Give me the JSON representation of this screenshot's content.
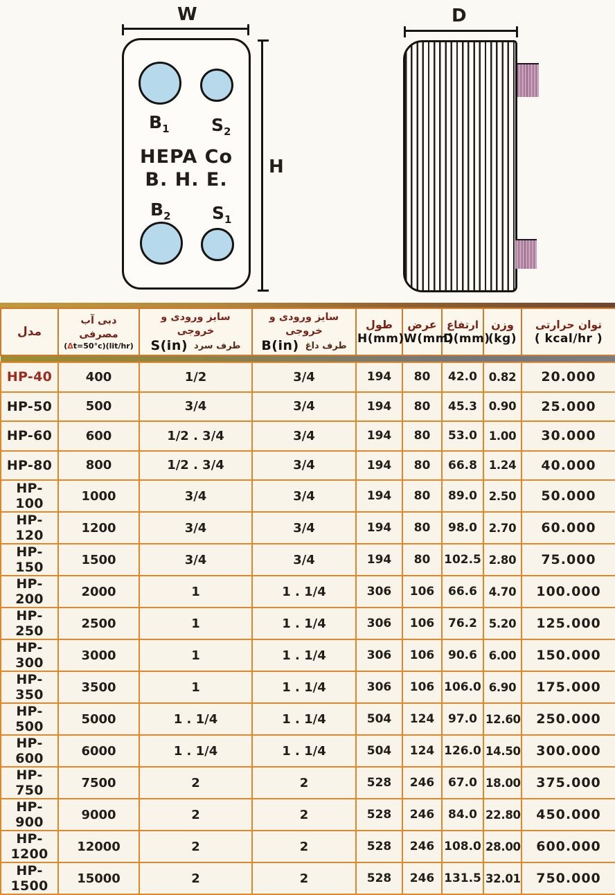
{
  "colors": {
    "grid_orange": "#e2862a",
    "header_maroon": "#7a2418",
    "model_red": "#9c2b1e",
    "port_blue": "#b6d9eb",
    "stub_pink": "#c8a0ba"
  },
  "front_view": {
    "width_label": "W",
    "height_label": "H",
    "brand_line1": "HEPA Co",
    "brand_line2": "B. H. E.",
    "ports": [
      {
        "label": "B",
        "sub": "1"
      },
      {
        "label": "S",
        "sub": "2"
      },
      {
        "label": "B",
        "sub": "2"
      },
      {
        "label": "S",
        "sub": "1"
      }
    ]
  },
  "side_view": {
    "depth_label": "D"
  },
  "table": {
    "header": {
      "model": "مدل",
      "flow_title": "دبی آب مصرفی",
      "flow_sub_open": "(",
      "flow_sub_delta": "Δ",
      "flow_sub_rest": "t=50°c)(lit/hr)",
      "size_title": "سایز ورودی و خروجی",
      "cold_unit": "S(in)",
      "cold_side": "طرف سرد",
      "hot_unit": "B(in)",
      "hot_side": "طرف داغ",
      "length_title": "طول",
      "length_unit": "H(mm)",
      "width_title": "عرض",
      "width_unit": "W(mm)",
      "height_title": "ارتفاع",
      "height_unit": "D(mm)",
      "weight_title": "وزن",
      "weight_unit": "(kg)",
      "power_title": "توان حرارتی",
      "power_unit": "( kcal/hr )"
    },
    "rows": [
      {
        "model": "HP-40",
        "flow": "400",
        "s": "1/2",
        "b": "3/4",
        "h": "194",
        "w": "80",
        "d": "42.0",
        "kg": "0.82",
        "kcal": "20.000",
        "accent": true
      },
      {
        "model": "HP-50",
        "flow": "500",
        "s": "3/4",
        "b": "3/4",
        "h": "194",
        "w": "80",
        "d": "45.3",
        "kg": "0.90",
        "kcal": "25.000"
      },
      {
        "model": "HP-60",
        "flow": "600",
        "s": "1/2 . 3/4",
        "b": "3/4",
        "h": "194",
        "w": "80",
        "d": "53.0",
        "kg": "1.00",
        "kcal": "30.000"
      },
      {
        "model": "HP-80",
        "flow": "800",
        "s": "1/2 . 3/4",
        "b": "3/4",
        "h": "194",
        "w": "80",
        "d": "66.8",
        "kg": "1.24",
        "kcal": "40.000"
      },
      {
        "model": "HP-100",
        "flow": "1000",
        "s": "3/4",
        "b": "3/4",
        "h": "194",
        "w": "80",
        "d": "89.0",
        "kg": "2.50",
        "kcal": "50.000"
      },
      {
        "model": "HP-120",
        "flow": "1200",
        "s": "3/4",
        "b": "3/4",
        "h": "194",
        "w": "80",
        "d": "98.0",
        "kg": "2.70",
        "kcal": "60.000"
      },
      {
        "model": "HP-150",
        "flow": "1500",
        "s": "3/4",
        "b": "3/4",
        "h": "194",
        "w": "80",
        "d": "102.5",
        "kg": "2.80",
        "kcal": "75.000"
      },
      {
        "model": "HP-200",
        "flow": "2000",
        "s": "1",
        "b": "1 . 1/4",
        "h": "306",
        "w": "106",
        "d": "66.6",
        "kg": "4.70",
        "kcal": "100.000"
      },
      {
        "model": "HP-250",
        "flow": "2500",
        "s": "1",
        "b": "1 . 1/4",
        "h": "306",
        "w": "106",
        "d": "76.2",
        "kg": "5.20",
        "kcal": "125.000"
      },
      {
        "model": "HP-300",
        "flow": "3000",
        "s": "1",
        "b": "1 . 1/4",
        "h": "306",
        "w": "106",
        "d": "90.6",
        "kg": "6.00",
        "kcal": "150.000"
      },
      {
        "model": "HP-350",
        "flow": "3500",
        "s": "1",
        "b": "1 . 1/4",
        "h": "306",
        "w": "106",
        "d": "106.0",
        "kg": "6.90",
        "kcal": "175.000"
      },
      {
        "model": "HP-500",
        "flow": "5000",
        "s": "1 . 1/4",
        "b": "1 . 1/4",
        "h": "504",
        "w": "124",
        "d": "97.0",
        "kg": "12.60",
        "kcal": "250.000"
      },
      {
        "model": "HP-600",
        "flow": "6000",
        "s": "1 . 1/4",
        "b": "1 . 1/4",
        "h": "504",
        "w": "124",
        "d": "126.0",
        "kg": "14.50",
        "kcal": "300.000"
      },
      {
        "model": "HP-750",
        "flow": "7500",
        "s": "2",
        "b": "2",
        "h": "528",
        "w": "246",
        "d": "67.0",
        "kg": "18.00",
        "kcal": "375.000"
      },
      {
        "model": "HP-900",
        "flow": "9000",
        "s": "2",
        "b": "2",
        "h": "528",
        "w": "246",
        "d": "84.0",
        "kg": "22.80",
        "kcal": "450.000"
      },
      {
        "model": "HP-1200",
        "flow": "12000",
        "s": "2",
        "b": "2",
        "h": "528",
        "w": "246",
        "d": "108.0",
        "kg": "28.00",
        "kcal": "600.000"
      },
      {
        "model": "HP-1500",
        "flow": "15000",
        "s": "2",
        "b": "2",
        "h": "528",
        "w": "246",
        "d": "131.5",
        "kg": "32.01",
        "kcal": "750.000"
      }
    ]
  }
}
